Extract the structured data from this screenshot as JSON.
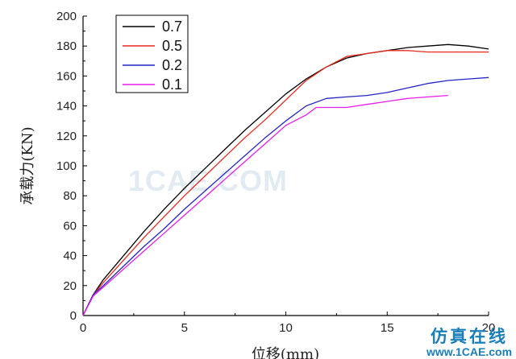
{
  "chart_data": {
    "type": "line",
    "xlabel": "位移(mm)",
    "ylabel": "承载力(KN)",
    "xlim": [
      0,
      20
    ],
    "ylim": [
      0,
      200
    ],
    "xticks": [
      0,
      5,
      10,
      15,
      20
    ],
    "yticks": [
      0,
      20,
      40,
      60,
      80,
      100,
      120,
      140,
      160,
      180,
      200
    ],
    "grid": false,
    "legend_position": "top-left",
    "series": [
      {
        "name": "0.7",
        "color": "#000000",
        "x": [
          0,
          0.5,
          1,
          2,
          3,
          4,
          5,
          6,
          7,
          8,
          9,
          10,
          11,
          12,
          13,
          14,
          15,
          16,
          17,
          18,
          19,
          20
        ],
        "y": [
          0,
          14,
          24,
          40,
          56,
          71,
          85,
          98,
          111,
          124,
          136,
          148,
          158,
          166,
          172,
          175,
          177,
          179,
          180,
          181,
          180,
          178
        ]
      },
      {
        "name": "0.5",
        "color": "#e8281c",
        "x": [
          0,
          0.5,
          1,
          2,
          3,
          4,
          5,
          6,
          7,
          8,
          9,
          10,
          11,
          12,
          13,
          14,
          15,
          16,
          17,
          18,
          19,
          20
        ],
        "y": [
          0,
          14,
          22,
          37,
          52,
          66,
          80,
          93,
          106,
          119,
          131,
          144,
          157,
          166,
          173,
          175,
          177,
          177,
          176,
          176,
          176,
          176
        ]
      },
      {
        "name": "0.2",
        "color": "#2424c8",
        "x": [
          0,
          0.5,
          1,
          2,
          3,
          4,
          5,
          6,
          7,
          8,
          9,
          10,
          11,
          12,
          13,
          14,
          15,
          16,
          17,
          18,
          19,
          20
        ],
        "y": [
          0,
          14,
          20,
          33,
          46,
          58,
          71,
          83,
          95,
          107,
          119,
          130,
          140,
          145,
          146,
          147,
          149,
          152,
          155,
          157,
          158,
          159
        ]
      },
      {
        "name": "0.1",
        "color": "#e81ce8",
        "x": [
          0,
          0.5,
          1,
          2,
          3,
          4,
          5,
          6,
          7,
          8,
          9,
          10,
          11,
          11.5,
          12,
          13,
          14,
          15,
          16,
          17,
          18
        ],
        "y": [
          0,
          13,
          19,
          31,
          43,
          55,
          67,
          79,
          91,
          103,
          115,
          127,
          134,
          139,
          139,
          139,
          141,
          143,
          145,
          146,
          147
        ]
      }
    ]
  },
  "watermark": {
    "center_text": "1CAE.COM",
    "site_name": "仿真在线",
    "site_url": "www.1CAE.com"
  }
}
